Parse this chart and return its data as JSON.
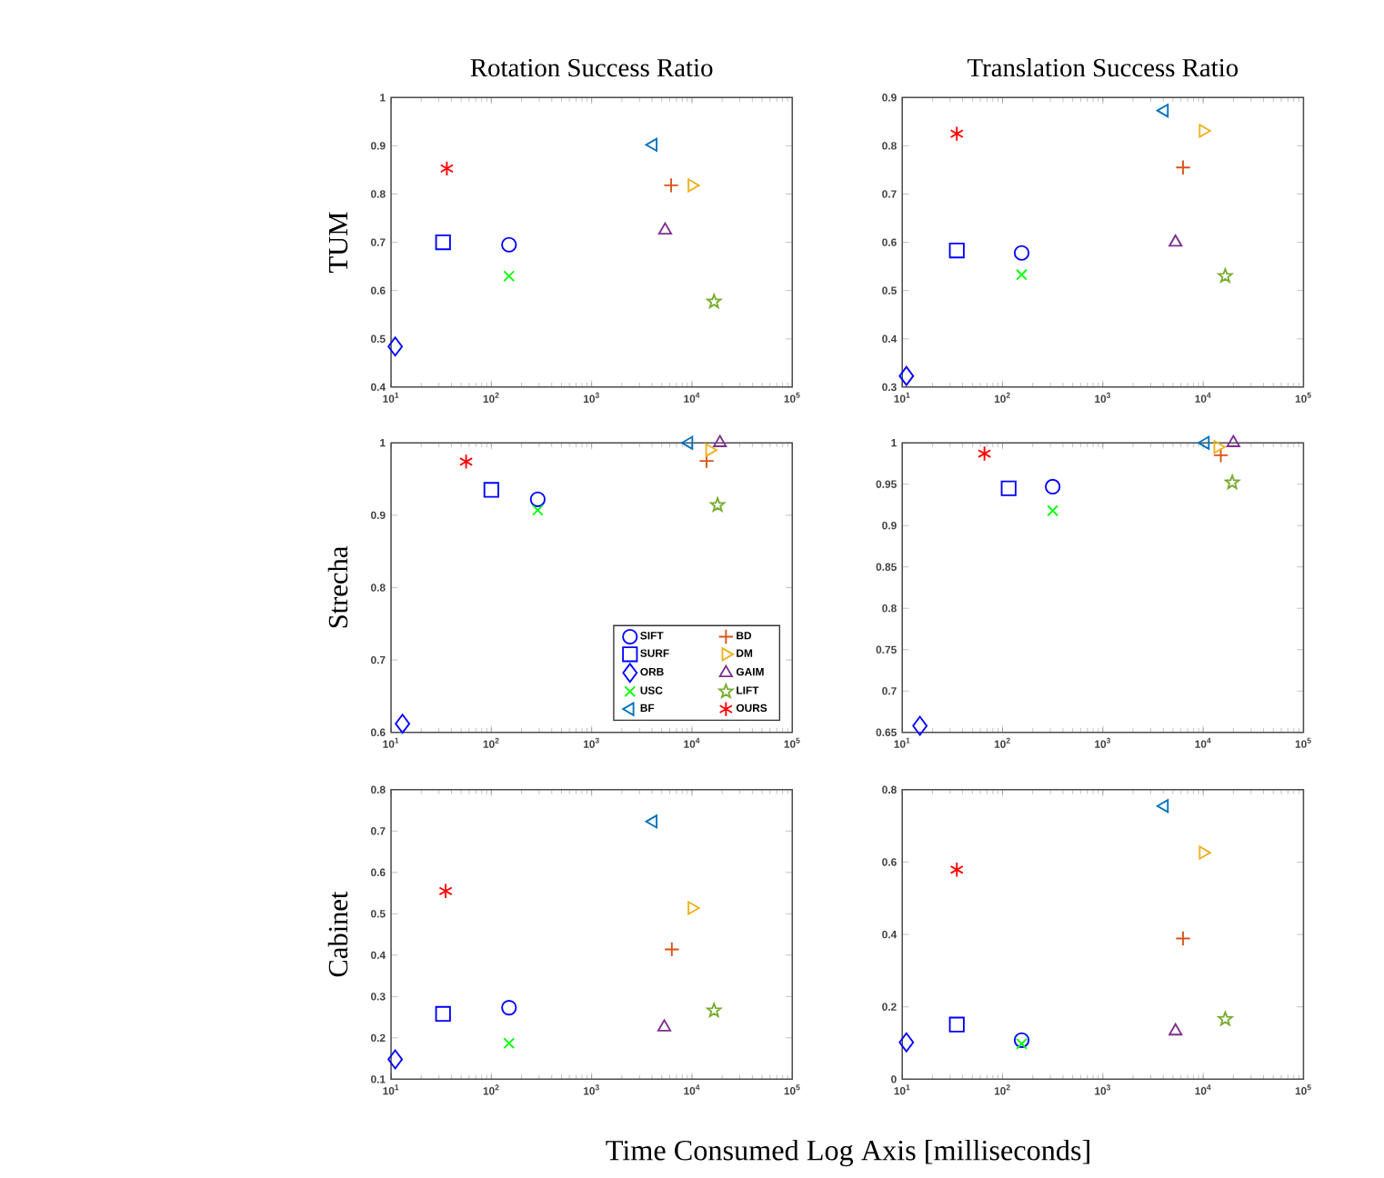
{
  "chart_data": [
    {
      "type": "scatter",
      "title": "Rotation Success Ratio",
      "ylabel": "TUM",
      "log": "x",
      "legend": false,
      "grid": false,
      "xlim": [
        10,
        100000
      ],
      "xticks": [
        {
          "value": 10,
          "label": "10$^{1}$"
        },
        {
          "value": 100,
          "label": "10$^{2}$"
        },
        {
          "value": 1000,
          "label": "10$^{3}$"
        },
        {
          "value": 10000,
          "label": "10$^{4}$"
        },
        {
          "value": 100000,
          "label": "10$^{5}$"
        }
      ],
      "ylim": [
        0.4,
        1
      ],
      "yticks": [
        0.4,
        0.5,
        0.6,
        0.7,
        0.8,
        0.9,
        1
      ],
      "series": [
        {
          "marker": "circle",
          "color": "#0000ff",
          "x": [
            150
          ],
          "values": [
            0.695
          ]
        },
        {
          "marker": "square",
          "color": "#0000ff",
          "x": [
            33
          ],
          "values": [
            0.7
          ]
        },
        {
          "marker": "diamond",
          "color": "#0000ff",
          "x": [
            11
          ],
          "values": [
            0.484
          ]
        },
        {
          "marker": "cross",
          "color": "#00ff00",
          "x": [
            150
          ],
          "values": [
            0.63
          ]
        },
        {
          "marker": "triangle-left",
          "color": "#0072bd",
          "x": [
            4100
          ],
          "values": [
            0.902
          ]
        },
        {
          "marker": "plus",
          "color": "#d95319",
          "x": [
            6200
          ],
          "values": [
            0.818
          ]
        },
        {
          "marker": "triangle-right",
          "color": "#edb120",
          "x": [
            10000
          ],
          "values": [
            0.818
          ]
        },
        {
          "marker": "triangle",
          "color": "#7e2f8e",
          "x": [
            5400
          ],
          "values": [
            0.725
          ]
        },
        {
          "marker": "star",
          "color": "#77ac30",
          "x": [
            16600
          ],
          "values": [
            0.577
          ]
        },
        {
          "color": "#ff0000",
          "x": [
            36
          ],
          "values": [
            0.853
          ]
        }
      ]
    },
    {
      "type": "scatter",
      "title": "Translation Success Ratio",
      "log": "x",
      "legend": false,
      "grid": false,
      "xlim": [
        10,
        100000
      ],
      "xticks": [
        {
          "value": 10,
          "label": "10$^{1}$"
        },
        {
          "value": 100,
          "label": "10$^{2}$"
        },
        {
          "value": 1000,
          "label": "10$^{3}$"
        },
        {
          "value": 10000,
          "label": "10$^{4}$"
        },
        {
          "value": 100000,
          "label": "10$^{5}$"
        }
      ],
      "ylim": [
        0.3,
        0.9
      ],
      "yticks": [
        0.3,
        0.4,
        0.5,
        0.6,
        0.7,
        0.8,
        0.9
      ],
      "series": [
        {
          "marker": "circle",
          "color": "#0000ff",
          "x": [
            155
          ],
          "values": [
            0.578
          ]
        },
        {
          "marker": "square",
          "color": "#0000ff",
          "x": [
            35
          ],
          "values": [
            0.583
          ]
        },
        {
          "marker": "diamond",
          "color": "#0000ff",
          "x": [
            11
          ],
          "values": [
            0.323
          ]
        },
        {
          "marker": "cross",
          "color": "#00ff00",
          "x": [
            155
          ],
          "values": [
            0.533
          ]
        },
        {
          "marker": "triangle-left",
          "color": "#0072bd",
          "x": [
            4100
          ],
          "values": [
            0.873
          ]
        },
        {
          "marker": "plus",
          "color": "#d95319",
          "x": [
            6300
          ],
          "values": [
            0.755
          ]
        },
        {
          "marker": "triangle-right",
          "color": "#edb120",
          "x": [
            10000
          ],
          "values": [
            0.831
          ]
        },
        {
          "marker": "triangle",
          "color": "#7e2f8e",
          "x": [
            5300
          ],
          "values": [
            0.6
          ]
        },
        {
          "marker": "star",
          "color": "#77ac30",
          "x": [
            16600
          ],
          "values": [
            0.53
          ]
        },
        {
          "color": "#ff0000",
          "x": [
            35
          ],
          "values": [
            0.825
          ]
        }
      ]
    },
    {
      "type": "scatter",
      "ylabel": "Strecha",
      "log": "x",
      "legend": "bottom right",
      "grid": false,
      "xlim": [
        10,
        100000
      ],
      "xticks": [
        {
          "value": 10,
          "label": "10$^{1}$"
        },
        {
          "value": 100,
          "label": "10$^{2}$"
        },
        {
          "value": 1000,
          "label": "10$^{3}$"
        },
        {
          "value": 10000,
          "label": "10$^{4}$"
        },
        {
          "value": 100000,
          "label": "10$^{5}$"
        }
      ],
      "ylim": [
        0.6,
        1
      ],
      "yticks": [
        0.6,
        0.7,
        0.8,
        0.9,
        1
      ],
      "series": [
        {
          "name": "SIFT",
          "marker": "circle",
          "color": "#0000ff",
          "x": [
            290
          ],
          "values": [
            0.922
          ]
        },
        {
          "name": "SURF",
          "marker": "square",
          "color": "#0000ff",
          "x": [
            100
          ],
          "values": [
            0.935
          ]
        },
        {
          "name": "ORB",
          "marker": "diamond",
          "color": "#0000ff",
          "x": [
            13
          ],
          "values": [
            0.612
          ]
        },
        {
          "name": "USC",
          "marker": "cross",
          "color": "#00ff00",
          "x": [
            290
          ],
          "values": [
            0.907
          ]
        },
        {
          "name": "BF",
          "marker": "triangle-left",
          "color": "#0072bd",
          "x": [
            9300
          ],
          "values": [
            1.0
          ]
        },
        {
          "name": "BD",
          "marker": "plus",
          "color": "#d95319",
          "x": [
            14000
          ],
          "values": [
            0.975
          ]
        },
        {
          "name": "DM",
          "marker": "triangle-right",
          "color": "#edb120",
          "x": [
            15000
          ],
          "values": [
            0.99
          ]
        },
        {
          "name": "GAIM",
          "marker": "triangle",
          "color": "#7e2f8e",
          "x": [
            19000
          ],
          "values": [
            1.0
          ]
        },
        {
          "name": "LIFT",
          "marker": "star",
          "color": "#77ac30",
          "x": [
            18000
          ],
          "values": [
            0.914
          ]
        },
        {
          "name": "OURS",
          "color": "#ff0000",
          "x": [
            56
          ],
          "values": [
            0.974
          ]
        }
      ]
    },
    {
      "type": "scatter",
      "log": "x",
      "legend": false,
      "grid": false,
      "xlim": [
        10,
        100000
      ],
      "xticks": [
        {
          "value": 10,
          "label": "10$^{1}$"
        },
        {
          "value": 100,
          "label": "10$^{2}$"
        },
        {
          "value": 1000,
          "label": "10$^{3}$"
        },
        {
          "value": 10000,
          "label": "10$^{4}$"
        },
        {
          "value": 100000,
          "label": "10$^{5}$"
        }
      ],
      "ylim": [
        0.65,
        1
      ],
      "yticks": [
        0.65,
        0.7,
        0.75,
        0.8,
        0.85,
        0.9,
        0.95,
        1
      ],
      "series": [
        {
          "marker": "circle",
          "color": "#0000ff",
          "x": [
            316
          ],
          "values": [
            0.947
          ]
        },
        {
          "marker": "square",
          "color": "#0000ff",
          "x": [
            115
          ],
          "values": [
            0.945
          ]
        },
        {
          "marker": "diamond",
          "color": "#0000ff",
          "x": [
            15
          ],
          "values": [
            0.658
          ]
        },
        {
          "marker": "cross",
          "color": "#00ff00",
          "x": [
            316
          ],
          "values": [
            0.918
          ]
        },
        {
          "marker": "triangle-left",
          "color": "#0072bd",
          "x": [
            10500
          ],
          "values": [
            1.0
          ]
        },
        {
          "marker": "plus",
          "color": "#d95319",
          "x": [
            15000
          ],
          "values": [
            0.985
          ]
        },
        {
          "marker": "triangle-right",
          "color": "#edb120",
          "x": [
            14000
          ],
          "values": [
            0.995
          ]
        },
        {
          "marker": "triangle",
          "color": "#7e2f8e",
          "x": [
            20000
          ],
          "values": [
            1.0
          ]
        },
        {
          "marker": "star",
          "color": "#77ac30",
          "x": [
            19500
          ],
          "values": [
            0.952
          ]
        },
        {
          "color": "#ff0000",
          "x": [
            66
          ],
          "values": [
            0.987
          ]
        }
      ]
    },
    {
      "type": "scatter",
      "ylabel": "Cabinet",
      "xlabel": "Time Consumed Log Axis [milliseconds]",
      "log": "x",
      "legend": false,
      "grid": false,
      "xlim": [
        10,
        100000
      ],
      "xticks": [
        {
          "value": 10,
          "label": "10$^{1}$"
        },
        {
          "value": 100,
          "label": "10$^{2}$"
        },
        {
          "value": 1000,
          "label": "10$^{3}$"
        },
        {
          "value": 10000,
          "label": "10$^{4}$"
        },
        {
          "value": 100000,
          "label": "10$^{5}$"
        }
      ],
      "ylim": [
        0.1,
        0.8
      ],
      "yticks": [
        0.1,
        0.2,
        0.3,
        0.4,
        0.5,
        0.6,
        0.7,
        0.8
      ],
      "series": [
        {
          "marker": "circle",
          "color": "#0000ff",
          "x": [
            150
          ],
          "values": [
            0.273
          ]
        },
        {
          "marker": "square",
          "color": "#0000ff",
          "x": [
            33
          ],
          "values": [
            0.258
          ]
        },
        {
          "marker": "diamond",
          "color": "#0000ff",
          "x": [
            11
          ],
          "values": [
            0.148
          ]
        },
        {
          "marker": "cross",
          "color": "#00ff00",
          "x": [
            150
          ],
          "values": [
            0.187
          ]
        },
        {
          "marker": "triangle-left",
          "color": "#0072bd",
          "x": [
            4100
          ],
          "values": [
            0.723
          ]
        },
        {
          "marker": "plus",
          "color": "#d95319",
          "x": [
            6300
          ],
          "values": [
            0.414
          ]
        },
        {
          "marker": "triangle-right",
          "color": "#edb120",
          "x": [
            10000
          ],
          "values": [
            0.514
          ]
        },
        {
          "marker": "triangle",
          "color": "#7e2f8e",
          "x": [
            5300
          ],
          "values": [
            0.226
          ]
        },
        {
          "marker": "star",
          "color": "#77ac30",
          "x": [
            16600
          ],
          "values": [
            0.266
          ]
        },
        {
          "color": "#ff0000",
          "x": [
            35
          ],
          "values": [
            0.555
          ]
        }
      ]
    },
    {
      "type": "scatter",
      "log": "x",
      "legend": false,
      "grid": false,
      "xlim": [
        10,
        100000
      ],
      "xticks": [
        {
          "value": 10,
          "label": "10$^{1}$"
        },
        {
          "value": 100,
          "label": "10$^{2}$"
        },
        {
          "value": 1000,
          "label": "10$^{3}$"
        },
        {
          "value": 10000,
          "label": "10$^{4}$"
        },
        {
          "value": 100000,
          "label": "10$^{5}$"
        }
      ],
      "ylim": [
        0,
        0.8
      ],
      "yticks": [
        0,
        0.2,
        0.4,
        0.6,
        0.8
      ],
      "series": [
        {
          "marker": "circle",
          "color": "#0000ff",
          "x": [
            155
          ],
          "values": [
            0.108
          ]
        },
        {
          "marker": "square",
          "color": "#0000ff",
          "x": [
            35
          ],
          "values": [
            0.151
          ]
        },
        {
          "marker": "diamond",
          "color": "#0000ff",
          "x": [
            11
          ],
          "values": [
            0.102
          ]
        },
        {
          "marker": "cross",
          "color": "#00ff00",
          "x": [
            155
          ],
          "values": [
            0.098
          ]
        },
        {
          "marker": "triangle-left",
          "color": "#0072bd",
          "x": [
            4100
          ],
          "values": [
            0.755
          ]
        },
        {
          "marker": "plus",
          "color": "#d95319",
          "x": [
            6300
          ],
          "values": [
            0.389
          ]
        },
        {
          "marker": "triangle-right",
          "color": "#edb120",
          "x": [
            10000
          ],
          "values": [
            0.626
          ]
        },
        {
          "marker": "triangle",
          "color": "#7e2f8e",
          "x": [
            5300
          ],
          "values": [
            0.133
          ]
        },
        {
          "marker": "star",
          "color": "#77ac30",
          "x": [
            16600
          ],
          "values": [
            0.166
          ]
        },
        {
          "color": "#ff0000",
          "x": [
            35
          ],
          "values": [
            0.579
          ]
        }
      ]
    }
  ]
}
